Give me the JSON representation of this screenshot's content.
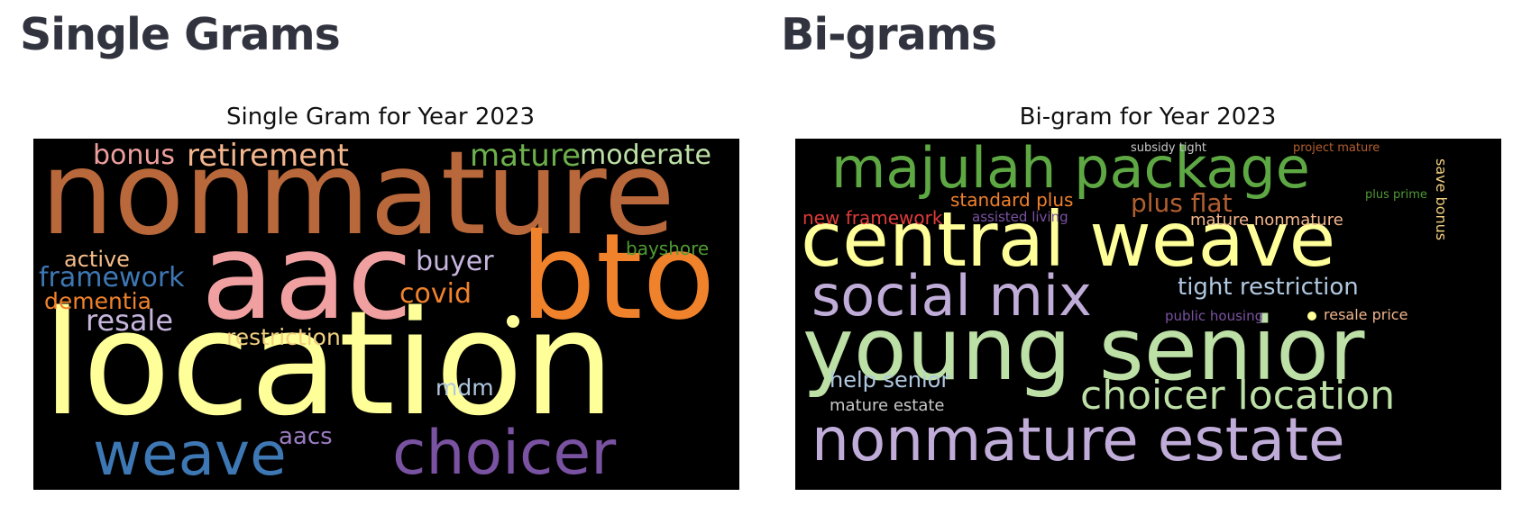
{
  "left": {
    "heading": "Single Grams",
    "figure_title": "Single Gram for Year 2023",
    "words": [
      "nonmature",
      "aac",
      "bto",
      "location",
      "weave",
      "choicer",
      "retirement",
      "bonus",
      "mature",
      "moderate",
      "bayshore",
      "active",
      "framework",
      "dementia",
      "buyer",
      "covid",
      "resale",
      "restriction",
      "mdm",
      "aacs"
    ]
  },
  "right": {
    "heading": "Bi-grams",
    "figure_title": "Bi-gram for Year 2023",
    "words": [
      "majulah package",
      "central weave",
      "social mix",
      "young senior",
      "nonmature estate",
      "choicer location",
      "subsidy tight",
      "project mature",
      "standard plus",
      "plus flat",
      "new framework",
      "assisted living",
      "mature nonmature",
      "plus prime",
      "save bonus",
      "tight restriction",
      "public housing",
      "resale price",
      "help senior",
      "mature estate"
    ]
  },
  "colors": {
    "background": "#000000",
    "heading_text": "#31333f",
    "cloud_colors": [
      "#b25f30",
      "#ef9a9a",
      "#f1812b",
      "#ffff99",
      "#3f78b3",
      "#7950a0",
      "#f0b38a",
      "#6ab04c",
      "#b8a8d4",
      "#b8dca0"
    ]
  }
}
